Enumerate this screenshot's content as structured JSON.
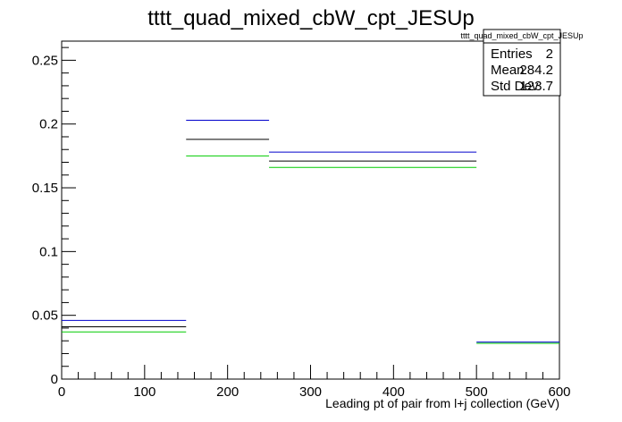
{
  "chart_data": {
    "type": "step",
    "title": "tttt_quad_mixed_cbW_cpt_JESUp",
    "xlabel": "Leading pt of pair from l+j collection (GeV)",
    "ylabel": "",
    "xlim": [
      0,
      600
    ],
    "ylim": [
      0,
      0.265
    ],
    "x_ticks": [
      0,
      100,
      200,
      300,
      400,
      500,
      600
    ],
    "y_ticks": [
      0,
      0.05,
      0.1,
      0.15,
      0.2,
      0.25
    ],
    "x_tick_labels": [
      "0",
      "100",
      "200",
      "300",
      "400",
      "500",
      "600"
    ],
    "y_tick_labels": [
      "0",
      "0.05",
      "0.1",
      "0.15",
      "0.2",
      "0.25"
    ],
    "bin_edges": [
      0,
      150,
      250,
      500,
      600
    ],
    "series": [
      {
        "color": "#000000",
        "values": [
          0.041,
          0.188,
          0.171,
          0.0
        ]
      },
      {
        "color": "#0000cc",
        "values": [
          0.046,
          0.203,
          0.178,
          0.029
        ]
      },
      {
        "color": "#00cc00",
        "values": [
          0.037,
          0.175,
          0.166,
          0.028
        ]
      }
    ],
    "grid": false
  },
  "stats_box": {
    "name": "tttt_quad_mixed_cbW_cpt_JESUp",
    "rows": [
      {
        "label": "Entries",
        "value": "2"
      },
      {
        "label": "Mean",
        "value": "284.2"
      },
      {
        "label": "Std Dev",
        "value": "123.7"
      }
    ]
  }
}
